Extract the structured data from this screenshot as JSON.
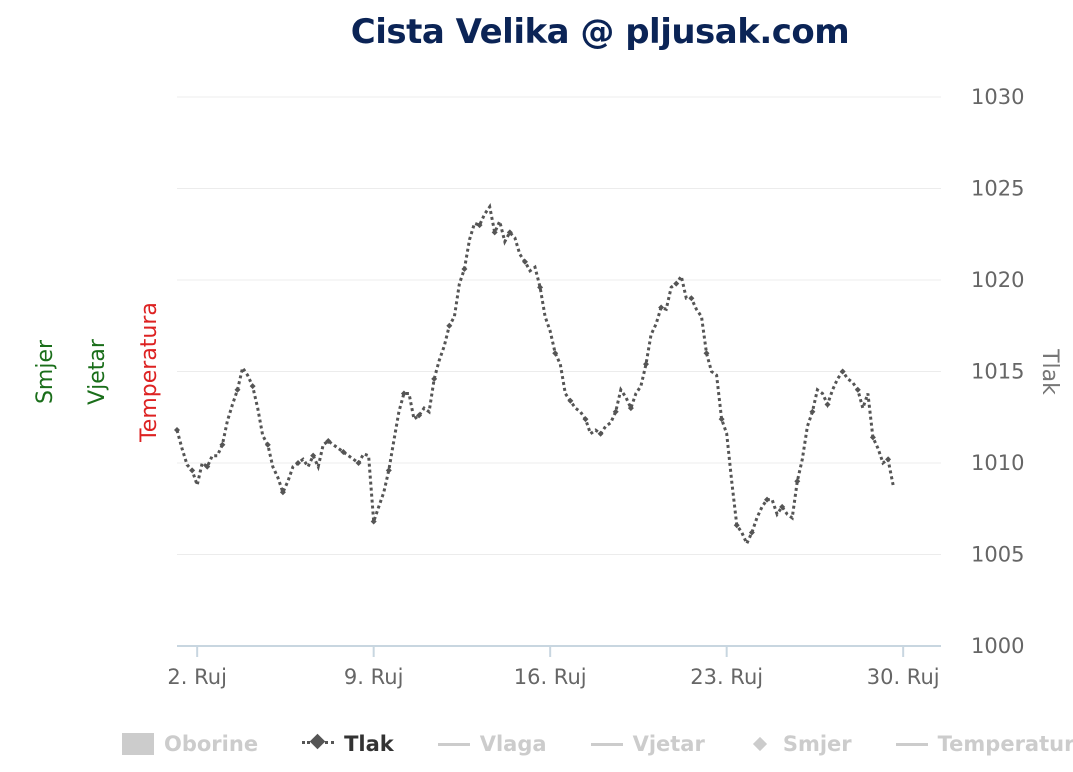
{
  "chart_data": {
    "type": "line",
    "title": "Cista Velika @ pljusak.com",
    "y_axis_title": "Tlak",
    "left_axis_titles": [
      {
        "label": "Smjer",
        "color": "#1a6e1a"
      },
      {
        "label": "Vjetar",
        "color": "#1a6e1a"
      },
      {
        "label": "Temperatura",
        "color": "#dd2222"
      }
    ],
    "ylim": [
      1000,
      1030
    ],
    "yticks": [
      1000,
      1005,
      1010,
      1015,
      1020,
      1025,
      1030
    ],
    "xlim": [
      1.2,
      31.5
    ],
    "xticks": [
      {
        "value": 2,
        "label": "2. Ruj"
      },
      {
        "value": 9,
        "label": "9. Ruj"
      },
      {
        "value": 16,
        "label": "16. Ruj"
      },
      {
        "value": 23,
        "label": "23. Ruj"
      },
      {
        "value": 30,
        "label": "30. Ruj"
      }
    ],
    "series": [
      {
        "name": "Tlak",
        "color": "#555555",
        "points": [
          [
            1.2,
            1011.8
          ],
          [
            1.4,
            1010.8
          ],
          [
            1.6,
            1009.9
          ],
          [
            1.8,
            1009.6
          ],
          [
            2.0,
            1008.8
          ],
          [
            2.2,
            1010.0
          ],
          [
            2.4,
            1009.8
          ],
          [
            2.6,
            1010.4
          ],
          [
            2.8,
            1010.4
          ],
          [
            3.0,
            1011.0
          ],
          [
            3.2,
            1012.3
          ],
          [
            3.4,
            1013.2
          ],
          [
            3.6,
            1014.0
          ],
          [
            3.8,
            1015.2
          ],
          [
            4.0,
            1014.8
          ],
          [
            4.2,
            1014.2
          ],
          [
            4.4,
            1013.0
          ],
          [
            4.6,
            1011.5
          ],
          [
            4.8,
            1011.0
          ],
          [
            5.0,
            1009.8
          ],
          [
            5.2,
            1009.2
          ],
          [
            5.4,
            1008.4
          ],
          [
            5.6,
            1009.0
          ],
          [
            5.8,
            1009.8
          ],
          [
            6.0,
            1010.0
          ],
          [
            6.2,
            1010.2
          ],
          [
            6.4,
            1009.8
          ],
          [
            6.6,
            1010.4
          ],
          [
            6.8,
            1009.8
          ],
          [
            7.0,
            1011.0
          ],
          [
            7.2,
            1011.2
          ],
          [
            7.4,
            1011.0
          ],
          [
            7.6,
            1010.8
          ],
          [
            7.8,
            1010.6
          ],
          [
            8.0,
            1010.4
          ],
          [
            8.2,
            1010.2
          ],
          [
            8.4,
            1010.0
          ],
          [
            8.6,
            1010.5
          ],
          [
            8.8,
            1010.4
          ],
          [
            9.0,
            1006.8
          ],
          [
            9.2,
            1007.6
          ],
          [
            9.4,
            1008.4
          ],
          [
            9.6,
            1009.6
          ],
          [
            9.8,
            1011.2
          ],
          [
            10.0,
            1012.8
          ],
          [
            10.2,
            1013.8
          ],
          [
            10.4,
            1013.8
          ],
          [
            10.6,
            1012.4
          ],
          [
            10.8,
            1012.6
          ],
          [
            11.0,
            1013.0
          ],
          [
            11.2,
            1012.8
          ],
          [
            11.4,
            1014.6
          ],
          [
            11.6,
            1015.6
          ],
          [
            11.8,
            1016.4
          ],
          [
            12.0,
            1017.5
          ],
          [
            12.2,
            1018.0
          ],
          [
            12.4,
            1019.8
          ],
          [
            12.6,
            1020.6
          ],
          [
            12.8,
            1022.2
          ],
          [
            13.0,
            1023.1
          ],
          [
            13.2,
            1023.0
          ],
          [
            13.4,
            1023.6
          ],
          [
            13.6,
            1024.0
          ],
          [
            13.8,
            1022.6
          ],
          [
            14.0,
            1023.2
          ],
          [
            14.2,
            1022.1
          ],
          [
            14.4,
            1022.6
          ],
          [
            14.6,
            1022.3
          ],
          [
            14.8,
            1021.4
          ],
          [
            15.0,
            1021.0
          ],
          [
            15.2,
            1020.5
          ],
          [
            15.4,
            1020.7
          ],
          [
            15.6,
            1019.6
          ],
          [
            15.8,
            1018.0
          ],
          [
            16.0,
            1017.2
          ],
          [
            16.2,
            1016.0
          ],
          [
            16.4,
            1015.4
          ],
          [
            16.6,
            1013.8
          ],
          [
            16.8,
            1013.4
          ],
          [
            17.0,
            1013.0
          ],
          [
            17.2,
            1012.8
          ],
          [
            17.4,
            1012.4
          ],
          [
            17.6,
            1011.6
          ],
          [
            17.8,
            1011.8
          ],
          [
            18.0,
            1011.6
          ],
          [
            18.2,
            1012.0
          ],
          [
            18.4,
            1012.2
          ],
          [
            18.6,
            1012.8
          ],
          [
            18.8,
            1014.0
          ],
          [
            19.0,
            1013.6
          ],
          [
            19.2,
            1013.0
          ],
          [
            19.4,
            1013.8
          ],
          [
            19.6,
            1014.2
          ],
          [
            19.8,
            1015.4
          ],
          [
            20.0,
            1017.0
          ],
          [
            20.2,
            1017.6
          ],
          [
            20.4,
            1018.5
          ],
          [
            20.6,
            1018.4
          ],
          [
            20.8,
            1019.6
          ],
          [
            21.0,
            1019.8
          ],
          [
            21.2,
            1020.2
          ],
          [
            21.4,
            1019.0
          ],
          [
            21.6,
            1019.0
          ],
          [
            21.8,
            1018.4
          ],
          [
            22.0,
            1018.0
          ],
          [
            22.2,
            1016.0
          ],
          [
            22.4,
            1015.0
          ],
          [
            22.6,
            1014.8
          ],
          [
            22.8,
            1012.4
          ],
          [
            23.0,
            1011.6
          ],
          [
            23.2,
            1009.0
          ],
          [
            23.4,
            1006.6
          ],
          [
            23.6,
            1006.2
          ],
          [
            23.8,
            1005.6
          ],
          [
            24.0,
            1006.2
          ],
          [
            24.2,
            1007.0
          ],
          [
            24.4,
            1007.6
          ],
          [
            24.6,
            1008.0
          ],
          [
            24.8,
            1008.0
          ],
          [
            25.0,
            1007.2
          ],
          [
            25.2,
            1007.6
          ],
          [
            25.4,
            1007.2
          ],
          [
            25.6,
            1007.0
          ],
          [
            25.8,
            1009.0
          ],
          [
            26.0,
            1010.2
          ],
          [
            26.2,
            1012.0
          ],
          [
            26.4,
            1012.8
          ],
          [
            26.6,
            1014.0
          ],
          [
            26.8,
            1013.8
          ],
          [
            27.0,
            1013.2
          ],
          [
            27.2,
            1014.0
          ],
          [
            27.4,
            1014.6
          ],
          [
            27.6,
            1015.0
          ],
          [
            27.8,
            1014.6
          ],
          [
            28.0,
            1014.4
          ],
          [
            28.2,
            1014.0
          ],
          [
            28.4,
            1013.0
          ],
          [
            28.6,
            1013.8
          ],
          [
            28.8,
            1011.4
          ],
          [
            29.0,
            1010.8
          ],
          [
            29.2,
            1010.0
          ],
          [
            29.4,
            1010.2
          ],
          [
            29.6,
            1008.8
          ]
        ]
      }
    ],
    "legend": {
      "placement": "bottom",
      "items": [
        {
          "label": "Oborine",
          "symbol": "box",
          "active": false
        },
        {
          "label": "Tlak",
          "symbol": "dash-diamond",
          "active": true
        },
        {
          "label": "Vlaga",
          "symbol": "line",
          "active": false
        },
        {
          "label": "Vjetar",
          "symbol": "line",
          "active": false
        },
        {
          "label": "Smjer",
          "symbol": "diamond",
          "active": false
        },
        {
          "label": "Temperatura",
          "symbol": "line",
          "active": false
        }
      ]
    },
    "grid": true
  }
}
